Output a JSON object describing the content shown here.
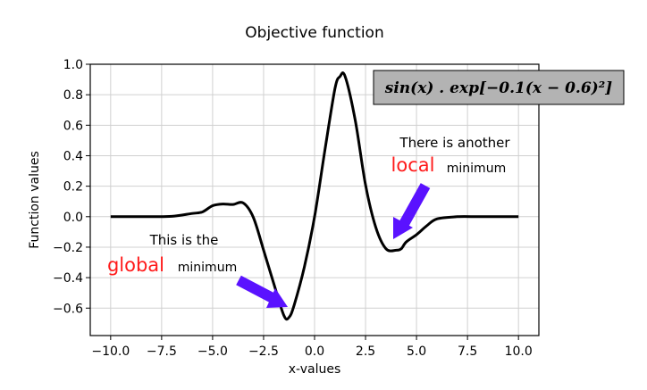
{
  "chart_data": {
    "type": "line",
    "title": "Objective function",
    "xlabel": "x-values",
    "ylabel": "Function values",
    "xlim": [
      -11,
      11
    ],
    "ylim": [
      -0.78,
      1.0
    ],
    "grid": true,
    "x_ticks": [
      -10.0,
      -7.5,
      -5.0,
      -2.5,
      0.0,
      2.5,
      5.0,
      7.5,
      10.0
    ],
    "x_tick_labels": [
      "−10.0",
      "−7.5",
      "−5.0",
      "−2.5",
      "0.0",
      "2.5",
      "5.0",
      "7.5",
      "10.0"
    ],
    "y_ticks": [
      -0.6,
      -0.4,
      -0.2,
      0.0,
      0.2,
      0.4,
      0.6,
      0.8,
      1.0
    ],
    "y_tick_labels": [
      "−0.6",
      "−0.4",
      "−0.2",
      "0.0",
      "0.2",
      "0.4",
      "0.6",
      "0.8",
      "1.0"
    ],
    "series": [
      {
        "color": "#000000",
        "x": [
          -10,
          -9,
          -8,
          -7,
          -6,
          -5.5,
          -5,
          -4.5,
          -4,
          -3.5,
          -3,
          -2.5,
          -2,
          -1.5,
          -1.25,
          -1,
          -0.5,
          0,
          0.5,
          1,
          1.25,
          1.5,
          2,
          2.5,
          3,
          3.5,
          4,
          4.25,
          4.5,
          5,
          5.5,
          6,
          7,
          8,
          9,
          10
        ],
        "y": [
          0.0,
          0.0,
          0.0,
          0.002,
          0.021,
          0.031,
          0.072,
          0.083,
          0.08,
          0.09,
          -0.005,
          -0.22,
          -0.44,
          -0.65,
          -0.66,
          -0.58,
          -0.33,
          0.0,
          0.43,
          0.84,
          0.92,
          0.92,
          0.63,
          0.21,
          -0.07,
          -0.21,
          -0.22,
          -0.21,
          -0.165,
          -0.118,
          -0.06,
          -0.015,
          0.0,
          0.0,
          0.0,
          0.0
        ]
      }
    ],
    "annotations": {
      "formula": "sin(x) . exp[−0.1(x − 0.6)²]",
      "local_line1": "There is another",
      "local_big": "local",
      "local_small": "minimum",
      "global_line1": "This is the",
      "global_big": "global",
      "global_small": "minimum",
      "arrow_color": "#5a12ff",
      "highlight_color": "#ff1a1a",
      "formula_box_color": "#b3b3b3"
    }
  }
}
